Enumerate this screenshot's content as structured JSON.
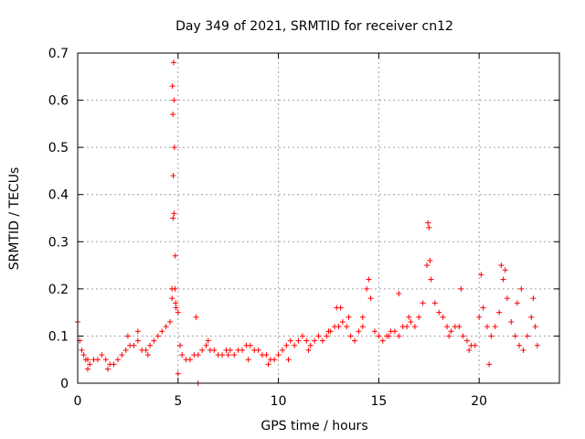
{
  "chart_data": {
    "type": "scatter",
    "title": "Day 349 of 2021, SRMTID for receiver cn12",
    "xlabel": "GPS time / hours",
    "ylabel": "SRMTID / TECUs",
    "xlim": [
      0,
      24
    ],
    "ylim": [
      0,
      0.7
    ],
    "xticks": [
      0,
      5,
      10,
      15,
      20
    ],
    "yticks": [
      0,
      0.1,
      0.2,
      0.3,
      0.4,
      0.5,
      0.6,
      0.7
    ],
    "xtick_labels": [
      "0",
      "5",
      "10",
      "15",
      "20"
    ],
    "ytick_labels": [
      "0",
      "0.1",
      "0.2",
      "0.3",
      "0.4",
      "0.5",
      "0.6",
      "0.7"
    ],
    "grid": true,
    "marker": "+",
    "marker_color": "#ff0000",
    "series": [
      {
        "name": "SRMTID",
        "x": [
          0.0,
          0.1,
          0.2,
          0.3,
          0.4,
          0.5,
          0.6,
          0.8,
          1.0,
          1.2,
          1.4,
          1.6,
          1.8,
          2.0,
          2.2,
          2.4,
          2.6,
          2.8,
          3.0,
          3.2,
          3.4,
          3.6,
          3.8,
          4.0,
          4.2,
          4.4,
          4.6,
          4.7,
          4.75,
          4.8,
          4.85,
          4.9,
          5.0,
          5.1,
          5.2,
          5.4,
          5.6,
          5.8,
          6.0,
          6.2,
          6.4,
          6.6,
          6.8,
          7.0,
          7.2,
          7.4,
          7.6,
          7.8,
          8.0,
          8.2,
          8.4,
          8.6,
          8.8,
          9.0,
          9.2,
          9.4,
          9.6,
          9.8,
          10.0,
          10.2,
          10.4,
          10.6,
          10.8,
          11.0,
          11.2,
          11.4,
          11.6,
          11.8,
          12.0,
          12.2,
          12.4,
          12.6,
          12.8,
          13.0,
          13.2,
          13.4,
          13.6,
          13.8,
          14.0,
          14.2,
          14.4,
          14.5,
          14.6,
          14.8,
          15.0,
          15.2,
          15.4,
          15.6,
          15.8,
          16.0,
          16.2,
          16.4,
          16.6,
          16.8,
          17.0,
          17.2,
          17.4,
          17.5,
          17.6,
          17.8,
          18.0,
          18.2,
          18.4,
          18.6,
          18.8,
          19.0,
          19.2,
          19.4,
          19.6,
          19.8,
          20.0,
          20.2,
          20.4,
          20.6,
          20.8,
          21.0,
          21.2,
          21.4,
          21.6,
          21.8,
          22.0,
          22.2,
          22.4,
          22.6,
          22.8,
          4.72,
          4.78,
          4.82,
          4.74,
          4.76,
          4.8,
          4.86,
          4.7,
          4.88,
          0.5,
          1.5,
          2.5,
          3.5,
          6.5,
          7.5,
          8.5,
          9.5,
          10.5,
          11.5,
          12.5,
          13.5,
          14.2,
          15.5,
          16.5,
          17.45,
          17.55,
          18.5,
          19.5,
          20.5,
          20.1,
          21.1,
          21.3,
          22.1,
          22.7,
          6.0,
          5.0,
          5.9,
          3.0,
          12.9,
          13.1,
          16.0,
          19.1,
          21.9,
          22.9
        ],
        "y": [
          0.13,
          0.09,
          0.07,
          0.06,
          0.05,
          0.05,
          0.04,
          0.05,
          0.05,
          0.06,
          0.05,
          0.04,
          0.04,
          0.05,
          0.06,
          0.07,
          0.08,
          0.08,
          0.09,
          0.07,
          0.07,
          0.08,
          0.09,
          0.1,
          0.11,
          0.12,
          0.13,
          0.18,
          0.35,
          0.6,
          0.2,
          0.16,
          0.15,
          0.08,
          0.06,
          0.05,
          0.05,
          0.06,
          0.06,
          0.07,
          0.08,
          0.07,
          0.07,
          0.06,
          0.06,
          0.07,
          0.07,
          0.06,
          0.07,
          0.07,
          0.08,
          0.08,
          0.07,
          0.07,
          0.06,
          0.06,
          0.05,
          0.05,
          0.06,
          0.07,
          0.08,
          0.09,
          0.08,
          0.09,
          0.1,
          0.09,
          0.08,
          0.09,
          0.1,
          0.09,
          0.1,
          0.11,
          0.12,
          0.12,
          0.13,
          0.12,
          0.1,
          0.09,
          0.11,
          0.12,
          0.2,
          0.22,
          0.18,
          0.11,
          0.1,
          0.09,
          0.1,
          0.11,
          0.11,
          0.1,
          0.12,
          0.12,
          0.13,
          0.12,
          0.14,
          0.17,
          0.25,
          0.33,
          0.22,
          0.17,
          0.15,
          0.14,
          0.12,
          0.11,
          0.12,
          0.12,
          0.1,
          0.09,
          0.08,
          0.08,
          0.14,
          0.16,
          0.12,
          0.1,
          0.12,
          0.15,
          0.22,
          0.18,
          0.13,
          0.1,
          0.08,
          0.07,
          0.1,
          0.14,
          0.12,
          0.63,
          0.68,
          0.5,
          0.57,
          0.44,
          0.36,
          0.27,
          0.2,
          0.17,
          0.03,
          0.03,
          0.1,
          0.06,
          0.09,
          0.06,
          0.05,
          0.04,
          0.05,
          0.07,
          0.11,
          0.14,
          0.14,
          0.1,
          0.14,
          0.34,
          0.26,
          0.1,
          0.07,
          0.04,
          0.23,
          0.25,
          0.24,
          0.2,
          0.18,
          0.0,
          0.02,
          0.14,
          0.11,
          0.16,
          0.16,
          0.19,
          0.2,
          0.17,
          0.08
        ]
      }
    ]
  }
}
